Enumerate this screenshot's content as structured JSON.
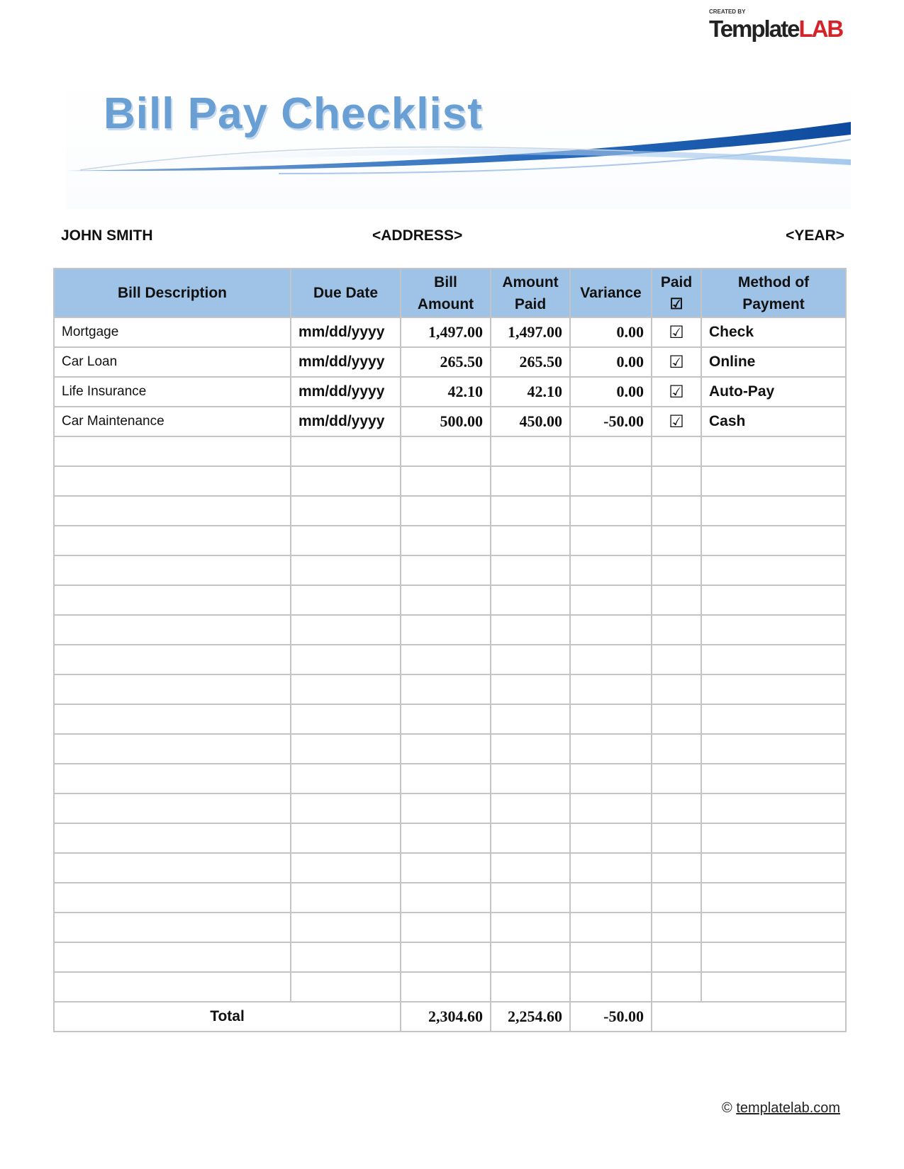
{
  "logo": {
    "created_by": "CREATED BY",
    "text_main": "Template",
    "text_accent": "LAB"
  },
  "title": "Bill Pay Checklist",
  "header": {
    "name": "JOHN SMITH",
    "address": "<ADDRESS>",
    "year": "<YEAR>"
  },
  "table": {
    "columns": [
      "Bill Description",
      "Due Date",
      "Bill Amount",
      "Amount Paid",
      "Variance",
      "Paid",
      "Method of Payment"
    ],
    "paid_header_icon": "☑",
    "rows": [
      {
        "description": "Mortgage",
        "due": "mm/dd/yyyy",
        "bill": "1,497.00",
        "paid_amount": "1,497.00",
        "variance": "0.00",
        "paid": "☑",
        "method": "Check"
      },
      {
        "description": "Car Loan",
        "due": "mm/dd/yyyy",
        "bill": "265.50",
        "paid_amount": "265.50",
        "variance": "0.00",
        "paid": "☑",
        "method": "Online"
      },
      {
        "description": "Life Insurance",
        "due": "mm/dd/yyyy",
        "bill": "42.10",
        "paid_amount": "42.10",
        "variance": "0.00",
        "paid": "☑",
        "method": "Auto-Pay"
      },
      {
        "description": "Car Maintenance",
        "due": "mm/dd/yyyy",
        "bill": "500.00",
        "paid_amount": "450.00",
        "variance": "-50.00",
        "paid": "☑",
        "method": "Cash"
      }
    ],
    "empty_rows": 19,
    "total": {
      "label": "Total",
      "bill": "2,304.60",
      "paid_amount": "2,254.60",
      "variance": "-50.00"
    }
  },
  "footer": {
    "copyright": "©",
    "link": "templatelab.com"
  },
  "colors": {
    "header_bg": "#9fc3e7",
    "title": "#6a9fd4",
    "swoosh": "#1d5fae",
    "logo_accent": "#d3242b"
  }
}
